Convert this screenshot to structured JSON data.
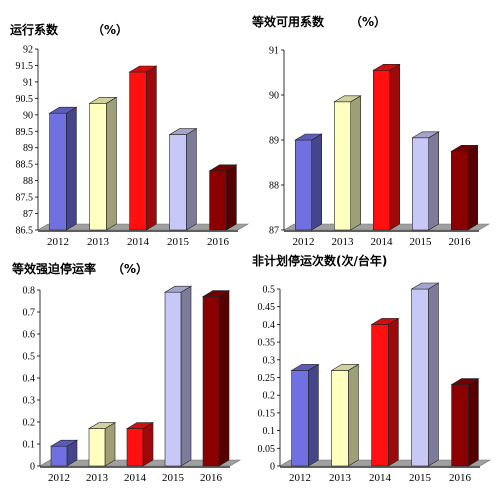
{
  "chart_data": [
    {
      "type": "bar",
      "title": "运行系数",
      "unit": "（%）",
      "categories": [
        "2012",
        "2013",
        "2014",
        "2015",
        "2016"
      ],
      "values": [
        90.05,
        90.35,
        91.3,
        89.4,
        88.3
      ],
      "ylim": [
        86.5,
        92
      ],
      "yticks": [
        "86.5",
        "87",
        "87.5",
        "88",
        "88.5",
        "89",
        "89.5",
        "90",
        "90.5",
        "91",
        "91.5",
        "92"
      ],
      "colors": [
        "#7070e0",
        "#ffffc0",
        "#ff1010",
        "#c8c8f8",
        "#8b0000"
      ],
      "grid": false,
      "legend": "none"
    },
    {
      "type": "bar",
      "title": "等效可用系数",
      "unit": "（%）",
      "categories": [
        "2012",
        "2013",
        "2014",
        "2015",
        "2016"
      ],
      "values": [
        89.0,
        89.85,
        90.55,
        89.05,
        88.75
      ],
      "ylim": [
        87,
        91
      ],
      "yticks": [
        "87",
        "88",
        "89",
        "90",
        "91"
      ],
      "colors": [
        "#7070e0",
        "#ffffc0",
        "#ff1010",
        "#c8c8f8",
        "#8b0000"
      ],
      "grid": false,
      "legend": "none"
    },
    {
      "type": "bar",
      "title": "等效强迫停运率",
      "unit": "（%）",
      "categories": [
        "2012",
        "2013",
        "2014",
        "2015",
        "2016"
      ],
      "values": [
        0.09,
        0.17,
        0.17,
        0.79,
        0.77
      ],
      "ylim": [
        0,
        0.8
      ],
      "yticks": [
        "0",
        "0.1",
        "0.2",
        "0.3",
        "0.4",
        "0.5",
        "0.6",
        "0.7",
        "0.8"
      ],
      "colors": [
        "#7070e0",
        "#ffffc0",
        "#ff1010",
        "#c8c8f8",
        "#8b0000"
      ],
      "grid": false,
      "legend": "none"
    },
    {
      "type": "bar",
      "title": "非计划停运次数(次/台年)",
      "unit": "",
      "categories": [
        "2012",
        "2013",
        "2014",
        "2015",
        "2016"
      ],
      "values": [
        0.27,
        0.27,
        0.4,
        0.5,
        0.23
      ],
      "ylim": [
        0,
        0.5
      ],
      "yticks": [
        "0",
        "0.05",
        "0.1",
        "0.15",
        "0.2",
        "0.25",
        "0.3",
        "0.35",
        "0.4",
        "0.45",
        "0.5"
      ],
      "colors": [
        "#7070e0",
        "#ffffc0",
        "#ff1010",
        "#c8c8f8",
        "#8b0000"
      ],
      "grid": false,
      "legend": "none"
    }
  ]
}
